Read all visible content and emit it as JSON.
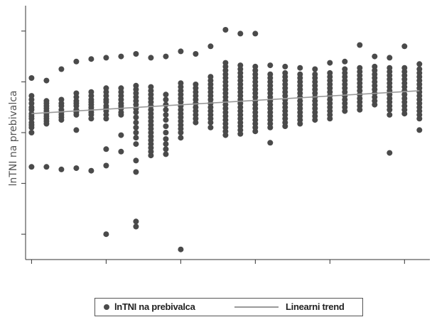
{
  "chart_data": {
    "type": "scatter",
    "title": "",
    "xlabel": "",
    "ylabel": "lnTNI na prebivalca",
    "xlim": [
      0.6,
      27.7
    ],
    "ylim": [
      -6.0,
      4.0
    ],
    "grid": false,
    "legend_position": "bottom",
    "colors": {
      "points": "#4a4a4a",
      "trend": "#999999",
      "axis": "#333333"
    },
    "x": [
      1,
      2,
      3,
      4,
      5,
      6,
      7,
      8,
      9,
      10,
      11,
      12,
      13,
      14,
      15,
      16,
      17,
      18,
      19,
      20,
      21,
      22,
      23,
      24,
      25,
      26,
      27
    ],
    "columns": [
      {
        "x": 1,
        "ys": [
          1.15,
          0.45,
          0.3,
          0.15,
          0.0,
          -0.1,
          -0.25,
          -0.35,
          -0.45,
          -0.6,
          -0.7,
          -0.8,
          -1.0,
          -2.35
        ]
      },
      {
        "x": 2,
        "ys": [
          1.05,
          0.25,
          0.15,
          0.05,
          -0.05,
          -0.15,
          -0.25,
          -0.35,
          -0.45,
          -0.55,
          -0.65,
          -2.35
        ]
      },
      {
        "x": 3,
        "ys": [
          1.5,
          0.3,
          0.15,
          0.05,
          -0.1,
          -0.2,
          -0.3,
          -0.4,
          -0.5,
          -2.45
        ]
      },
      {
        "x": 4,
        "ys": [
          1.8,
          0.55,
          0.4,
          0.25,
          0.15,
          0.05,
          -0.1,
          -0.2,
          -0.3,
          -0.9,
          -2.4
        ]
      },
      {
        "x": 5,
        "ys": [
          1.9,
          0.6,
          0.45,
          0.3,
          0.2,
          0.1,
          0.0,
          -0.1,
          -0.2,
          -0.3,
          -0.45,
          -2.5
        ]
      },
      {
        "x": 6,
        "ys": [
          1.95,
          0.75,
          0.6,
          0.45,
          0.3,
          0.2,
          0.05,
          -0.05,
          -0.15,
          -0.3,
          -0.45,
          -1.65,
          -2.3,
          -5.0
        ]
      },
      {
        "x": 7,
        "ys": [
          2.0,
          0.75,
          0.6,
          0.45,
          0.3,
          0.15,
          0.05,
          -0.05,
          -0.2,
          -0.3,
          -1.1,
          -1.75
        ]
      },
      {
        "x": 8,
        "ys": [
          2.1,
          0.85,
          0.7,
          0.55,
          0.4,
          0.25,
          0.1,
          -0.05,
          -0.2,
          -0.4,
          -0.6,
          -0.8,
          -1.0,
          -1.2,
          -1.45,
          -2.1,
          -2.55,
          -4.5,
          -4.7
        ]
      },
      {
        "x": 9,
        "ys": [
          1.95,
          0.8,
          0.65,
          0.5,
          0.35,
          0.2,
          0.05,
          -0.1,
          -0.25,
          -0.4,
          -0.55,
          -0.7,
          -0.85,
          -1.0,
          -1.15,
          -1.3,
          -1.45,
          -1.6,
          -1.75,
          -1.9
        ]
      },
      {
        "x": 10,
        "ys": [
          2.0,
          0.5,
          0.3,
          0.1,
          -0.1,
          -0.3,
          -0.5,
          -0.75,
          -1.0,
          -1.25,
          -1.45,
          -1.65,
          -1.85
        ]
      },
      {
        "x": 11,
        "ys": [
          2.2,
          0.95,
          0.8,
          0.65,
          0.5,
          0.35,
          0.2,
          0.05,
          -0.1,
          -0.25,
          -0.4,
          -0.55,
          -0.7,
          -0.85,
          -1.0,
          -1.2,
          -5.6
        ]
      },
      {
        "x": 12,
        "ys": [
          2.1,
          0.9,
          0.75,
          0.6,
          0.45,
          0.3,
          0.15,
          0.0,
          -0.15,
          -0.3,
          -0.45,
          -0.6
        ]
      },
      {
        "x": 13,
        "ys": [
          2.4,
          1.2,
          1.05,
          0.9,
          0.75,
          0.6,
          0.45,
          0.3,
          0.15,
          0.0,
          -0.15,
          -0.3,
          -0.45,
          -0.6,
          -0.8
        ]
      },
      {
        "x": 14,
        "ys": [
          3.05,
          1.75,
          1.6,
          1.45,
          1.3,
          1.15,
          1.0,
          0.85,
          0.7,
          0.55,
          0.4,
          0.25,
          0.1,
          -0.05,
          -0.2,
          -0.35,
          -0.5,
          -0.65,
          -0.8,
          -0.95,
          -1.1
        ]
      },
      {
        "x": 15,
        "ys": [
          2.9,
          1.65,
          1.5,
          1.35,
          1.2,
          1.05,
          0.9,
          0.75,
          0.6,
          0.45,
          0.3,
          0.15,
          0.0,
          -0.15,
          -0.3,
          -0.45,
          -0.6,
          -0.75,
          -0.9,
          -1.05
        ]
      },
      {
        "x": 16,
        "ys": [
          2.9,
          1.6,
          1.45,
          1.3,
          1.15,
          1.0,
          0.85,
          0.7,
          0.55,
          0.4,
          0.25,
          0.1,
          -0.05,
          -0.2,
          -0.35,
          -0.5,
          -0.65,
          -0.8,
          -0.95
        ]
      },
      {
        "x": 17,
        "ys": [
          1.65,
          1.3,
          1.15,
          1.0,
          0.85,
          0.7,
          0.55,
          0.4,
          0.25,
          0.1,
          -0.05,
          -0.2,
          -0.35,
          -0.5,
          -0.65,
          -0.8,
          -1.4
        ]
      },
      {
        "x": 18,
        "ys": [
          1.6,
          1.35,
          1.2,
          1.05,
          0.9,
          0.75,
          0.6,
          0.45,
          0.3,
          0.15,
          0.0,
          -0.15,
          -0.3,
          -0.45,
          -0.6,
          -0.75
        ]
      },
      {
        "x": 19,
        "ys": [
          1.55,
          1.3,
          1.15,
          1.0,
          0.85,
          0.7,
          0.55,
          0.4,
          0.25,
          0.1,
          -0.05,
          -0.2,
          -0.35,
          -0.5,
          -0.65
        ]
      },
      {
        "x": 20,
        "ys": [
          1.5,
          1.3,
          1.15,
          1.0,
          0.85,
          0.7,
          0.55,
          0.4,
          0.25,
          0.1,
          -0.05,
          -0.2,
          -0.35,
          -0.5
        ]
      },
      {
        "x": 21,
        "ys": [
          1.75,
          1.35,
          1.2,
          1.05,
          0.9,
          0.75,
          0.6,
          0.45,
          0.3,
          0.15,
          0.0,
          -0.15,
          -0.3,
          -0.45
        ]
      },
      {
        "x": 22,
        "ys": [
          1.8,
          1.5,
          1.35,
          1.2,
          1.05,
          0.9,
          0.75,
          0.6,
          0.45,
          0.3,
          0.15,
          0.0,
          -0.15
        ]
      },
      {
        "x": 23,
        "ys": [
          2.45,
          1.55,
          1.4,
          1.25,
          1.1,
          0.95,
          0.8,
          0.65,
          0.5,
          0.35,
          0.2,
          0.05,
          -0.1
        ]
      },
      {
        "x": 24,
        "ys": [
          2.0,
          1.6,
          1.45,
          1.3,
          1.15,
          1.0,
          0.85,
          0.7,
          0.55,
          0.4,
          0.25,
          0.1
        ]
      },
      {
        "x": 25,
        "ys": [
          1.95,
          1.55,
          1.4,
          1.25,
          1.1,
          0.95,
          0.8,
          0.65,
          0.5,
          0.35,
          0.2,
          0.05,
          -0.1,
          -0.3,
          -1.8
        ]
      },
      {
        "x": 26,
        "ys": [
          2.4,
          1.55,
          1.4,
          1.25,
          1.1,
          0.95,
          0.8,
          0.65,
          0.5,
          0.35,
          0.2,
          0.05,
          -0.1,
          -0.25
        ]
      },
      {
        "x": 27,
        "ys": [
          1.7,
          1.5,
          1.35,
          1.2,
          1.05,
          0.9,
          0.75,
          0.6,
          0.45,
          0.3,
          0.15,
          0.0,
          -0.15,
          -0.3,
          -0.45,
          -0.9
        ]
      }
    ],
    "trend": {
      "x": [
        1,
        27
      ],
      "y": [
        -0.25,
        0.65
      ]
    },
    "legend": [
      {
        "label": "lnTNI na prebivalca",
        "kind": "marker"
      },
      {
        "label": "Linearni trend",
        "kind": "line"
      }
    ]
  }
}
